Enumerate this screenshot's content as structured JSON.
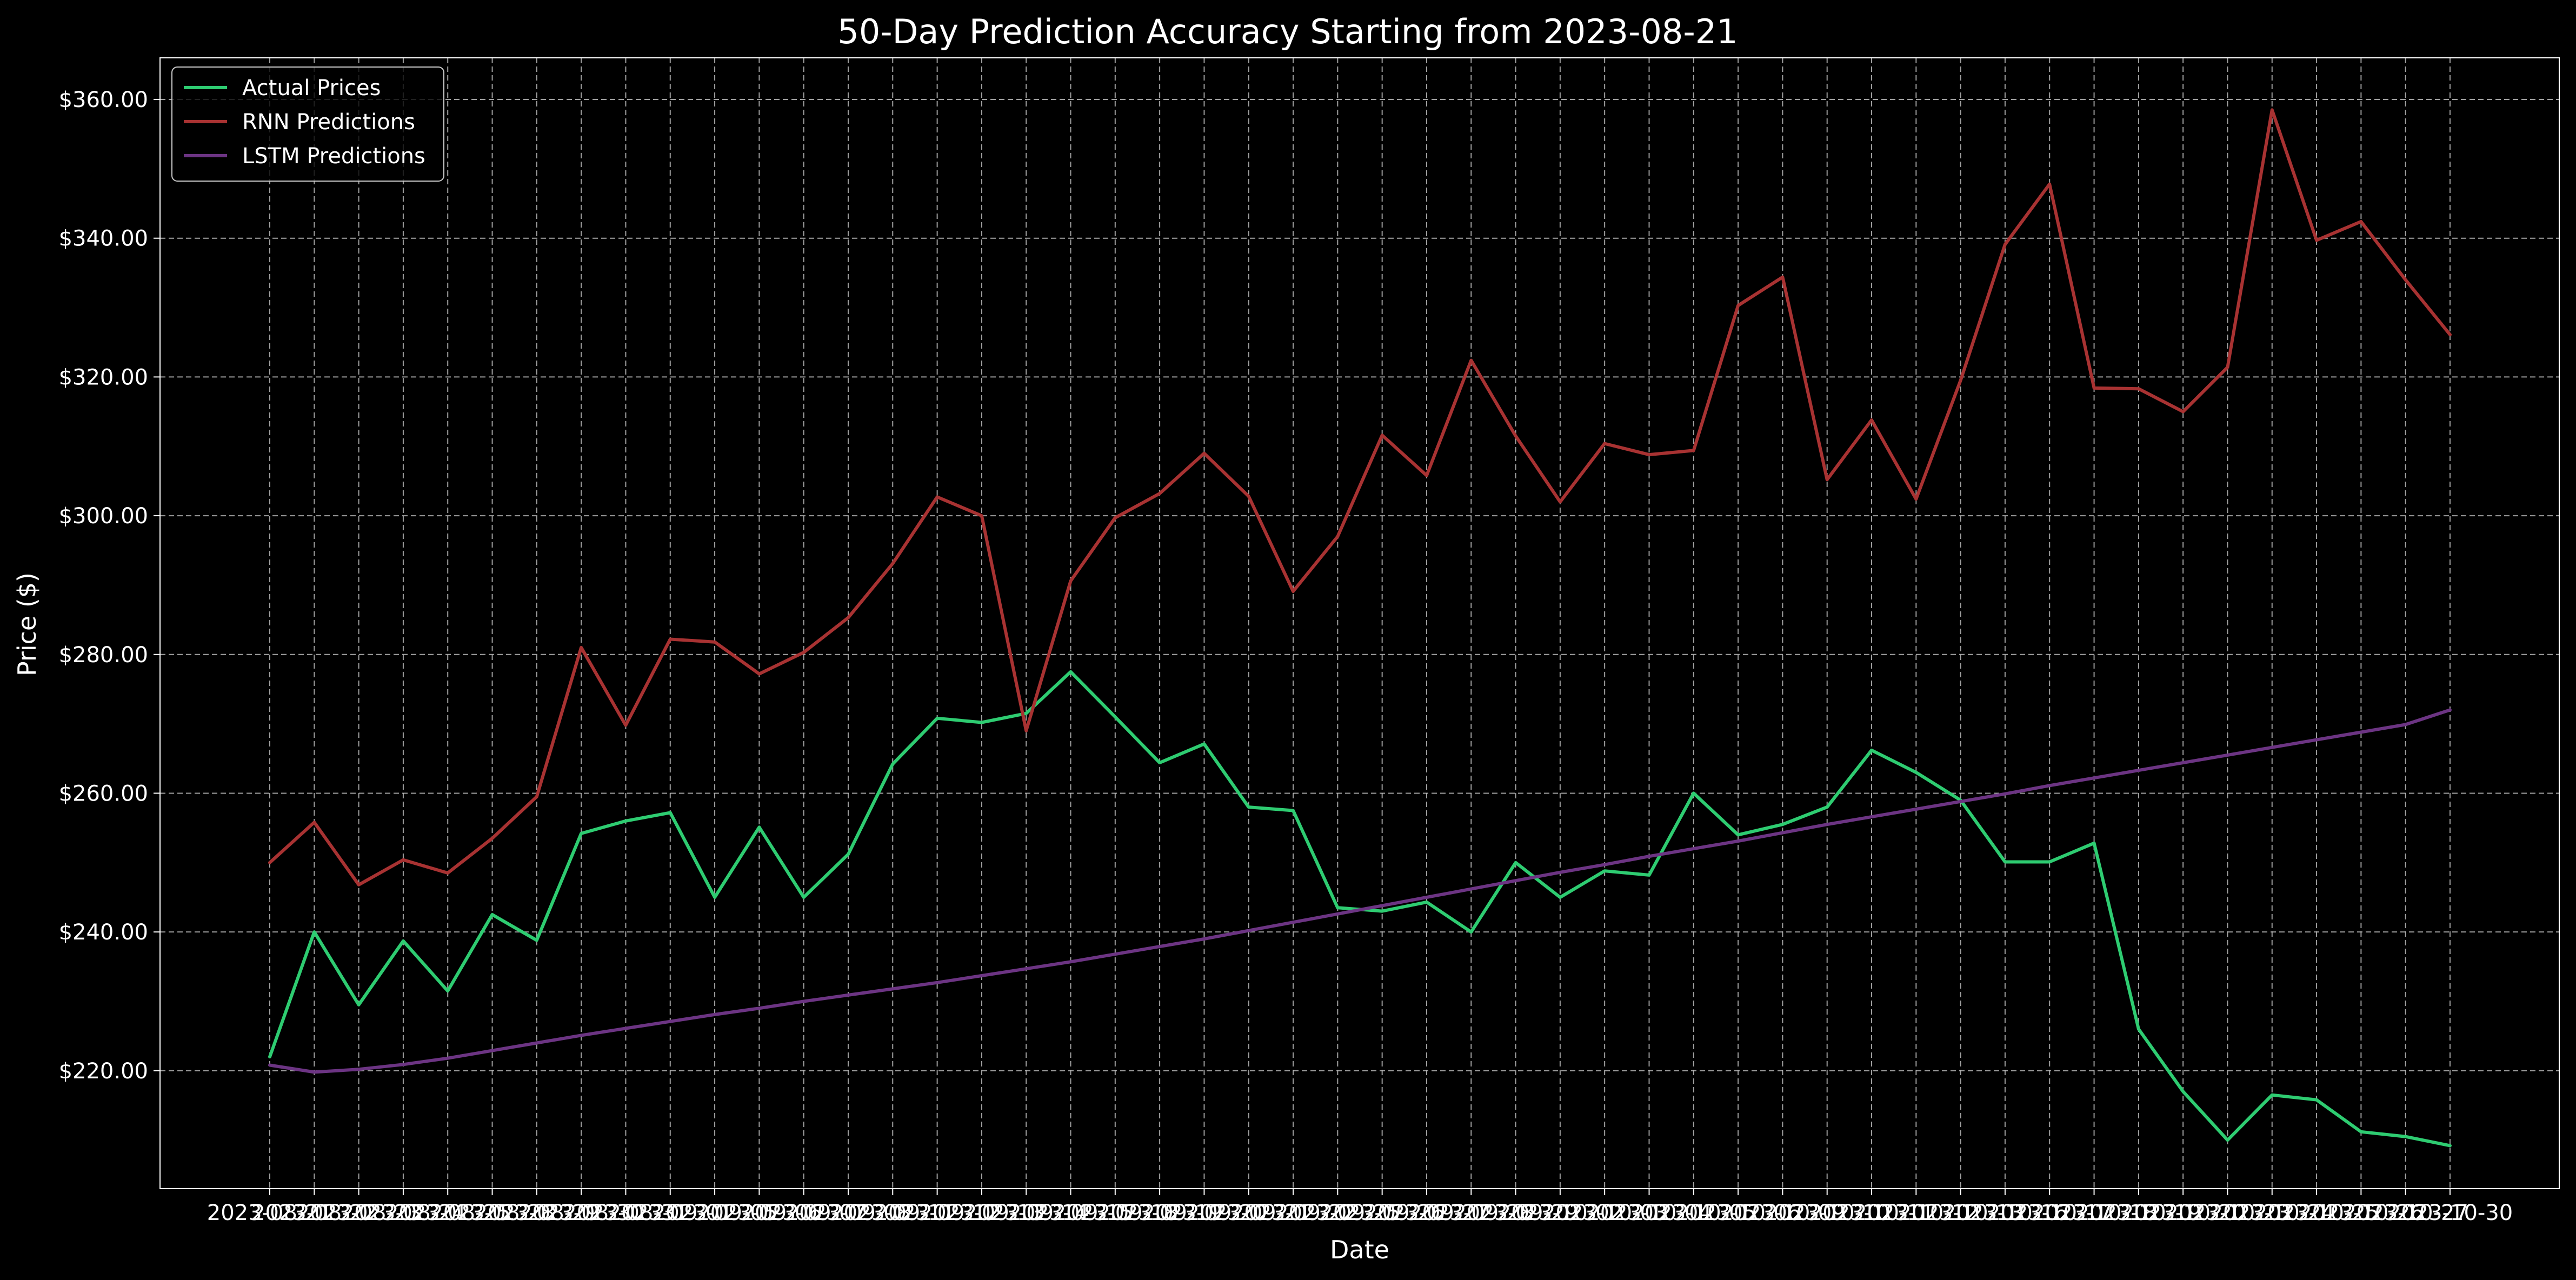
{
  "chart_data": {
    "type": "line",
    "title": "50-Day Prediction Accuracy Starting from 2023-08-21",
    "xlabel": "Date",
    "ylabel": "Price ($)",
    "x": [
      "2023-08-21",
      "2023-08-22",
      "2023-08-23",
      "2023-08-24",
      "2023-08-25",
      "2023-08-28",
      "2023-08-29",
      "2023-08-30",
      "2023-08-31",
      "2023-09-01",
      "2023-09-05",
      "2023-09-06",
      "2023-09-07",
      "2023-09-08",
      "2023-09-11",
      "2023-09-12",
      "2023-09-13",
      "2023-09-14",
      "2023-09-15",
      "2023-09-18",
      "2023-09-19",
      "2023-09-20",
      "2023-09-21",
      "2023-09-22",
      "2023-09-25",
      "2023-09-26",
      "2023-09-27",
      "2023-09-28",
      "2023-09-29",
      "2023-10-02",
      "2023-10-03",
      "2023-10-04",
      "2023-10-05",
      "2023-10-06",
      "2023-10-09",
      "2023-10-10",
      "2023-10-11",
      "2023-10-12",
      "2023-10-13",
      "2023-10-16",
      "2023-10-17",
      "2023-10-18",
      "2023-10-19",
      "2023-10-20",
      "2023-10-23",
      "2023-10-24",
      "2023-10-25",
      "2023-10-26",
      "2023-10-27",
      "2023-10-30"
    ],
    "series": [
      {
        "name": "Actual Prices",
        "color": "#2ecc71",
        "values": [
          222.0,
          240.0,
          229.5,
          238.7,
          231.5,
          242.5,
          238.8,
          254.2,
          256.0,
          257.2,
          245.0,
          255.1,
          245.0,
          251.2,
          264.2,
          270.8,
          270.2,
          271.5,
          277.5,
          271.0,
          264.4,
          267.1,
          258.0,
          257.5,
          243.5,
          243.0,
          244.3,
          240.0,
          250.0,
          245.0,
          248.8,
          248.2,
          260.0,
          254.0,
          255.5,
          258.0,
          266.2,
          263.0,
          259.0,
          250.1,
          250.1,
          252.8,
          226.0,
          217.0,
          210.0,
          216.5,
          215.8,
          211.2,
          210.5,
          209.2
        ]
      },
      {
        "name": "RNN Predictions",
        "color": "#a83232",
        "values": [
          250.0,
          255.8,
          246.8,
          250.4,
          248.5,
          253.5,
          259.5,
          281.0,
          269.8,
          282.2,
          281.8,
          277.2,
          280.3,
          285.3,
          293.1,
          302.7,
          300.0,
          269.0,
          290.6,
          299.7,
          303.2,
          309.0,
          302.8,
          289.1,
          297.0,
          311.6,
          305.8,
          322.4,
          311.5,
          302.0,
          310.4,
          308.8,
          309.4,
          330.3,
          334.4,
          305.2,
          313.8,
          302.4,
          319.5,
          339.1,
          347.8,
          318.4,
          318.3,
          315.0,
          321.4,
          358.5,
          339.7,
          342.4,
          334.0,
          326.1
        ]
      },
      {
        "name": "LSTM Predictions",
        "color": "#6c3483",
        "values": [
          220.8,
          219.8,
          220.2,
          220.9,
          221.8,
          222.9,
          224.0,
          225.1,
          226.1,
          227.1,
          228.1,
          229.0,
          230.0,
          230.9,
          231.8,
          232.7,
          233.7,
          234.7,
          235.7,
          236.8,
          237.9,
          239.0,
          240.2,
          241.4,
          242.6,
          243.8,
          245.0,
          246.2,
          247.4,
          248.6,
          249.7,
          250.9,
          252.0,
          253.1,
          254.3,
          255.5,
          256.6,
          257.7,
          258.8,
          259.9,
          261.1,
          262.2,
          263.3,
          264.4,
          265.5,
          266.6,
          267.7,
          268.8,
          269.9,
          272.0
        ]
      }
    ],
    "yticks": [
      "$220.00",
      "$240.00",
      "$260.00",
      "$280.00",
      "$300.00",
      "$320.00",
      "$340.00",
      "$360.00"
    ],
    "ytick_values": [
      220,
      240,
      260,
      280,
      300,
      320,
      340,
      360
    ],
    "ylim": [
      203,
      366
    ],
    "grid": true,
    "legend": "top-left",
    "background": "#000000",
    "text_color": "#ffffff",
    "grid_color": "#bbbbbb"
  }
}
